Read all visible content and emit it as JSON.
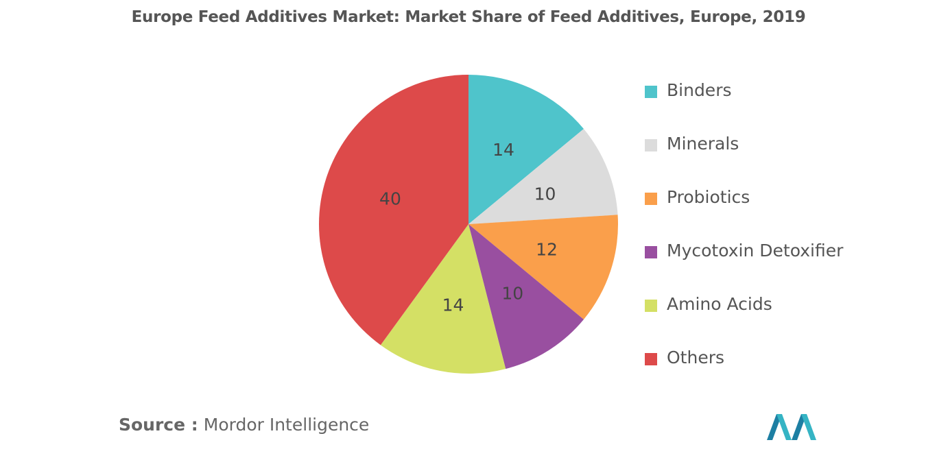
{
  "title": "Europe Feed Additives Market: Market Share of Feed Additives, Europe, 2019",
  "source": {
    "label": "Source :",
    "text": "Mordor Intelligence"
  },
  "chart_data": {
    "type": "pie",
    "title": "Europe Feed Additives Market: Market Share of Feed Additives, Europe, 2019",
    "legend_position": "right",
    "slices": [
      {
        "label": "Binders",
        "value": 14,
        "display": "14",
        "color": "#4fc4cb"
      },
      {
        "label": "Minerals",
        "value": 10,
        "display": "10",
        "color": "#dcdcdc"
      },
      {
        "label": "Probiotics",
        "value": 12,
        "display": "12",
        "color": "#fa9f4b"
      },
      {
        "label": "Mycotoxin Detoxifier",
        "value": 10,
        "display": "10",
        "color": "#994fa0"
      },
      {
        "label": "Amino Acids",
        "value": 14,
        "display": "14",
        "color": "#d4e065"
      },
      {
        "label": "Others",
        "value": 40,
        "display": "40",
        "color": "#dd4a4a"
      }
    ]
  }
}
